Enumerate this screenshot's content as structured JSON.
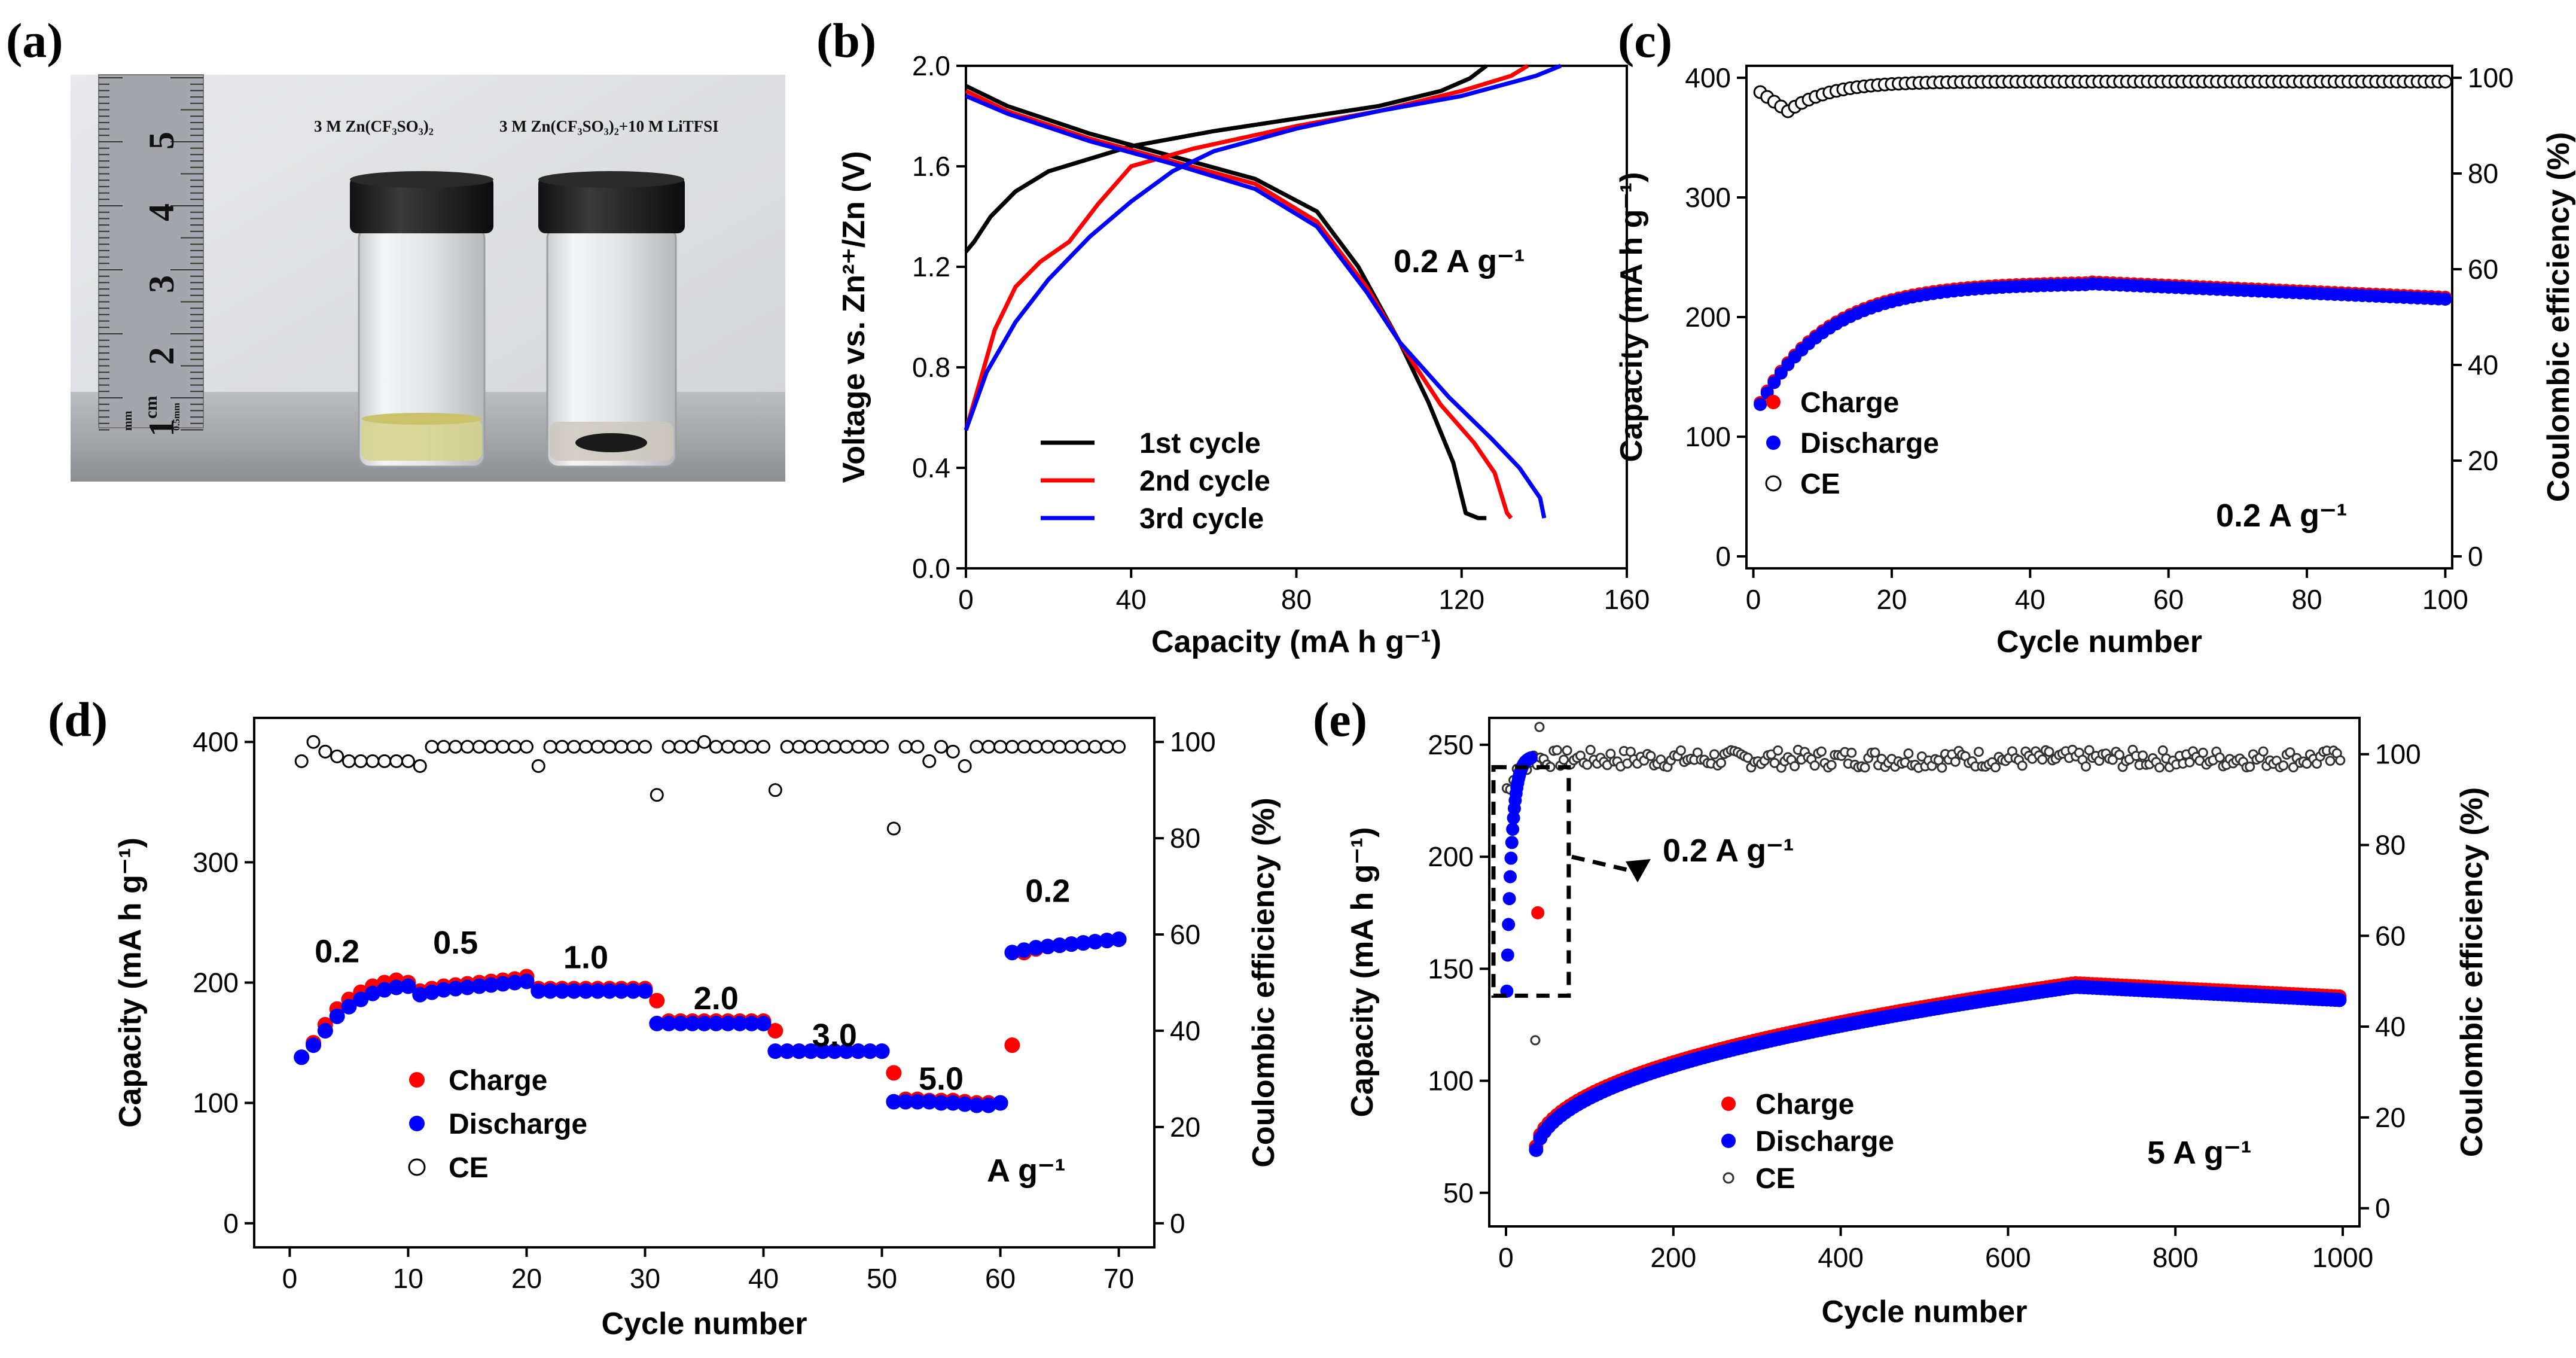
{
  "panel_labels": {
    "a": "(a)",
    "b": "(b)",
    "c": "(c)",
    "d": "(d)",
    "e": "(e)"
  },
  "photo": {
    "label_left": "3 M Zn(CF₃SO₃)₂",
    "label_right": "3 M Zn(CF₃SO₃)₂+10 M LiTFSI",
    "ruler_marks": [
      "5",
      "4",
      "3",
      "2",
      "1"
    ],
    "ruler_unit": "cm",
    "ruler_small": "mm",
    "ruler_small2": "0.5mm"
  },
  "chart_data": [
    {
      "id": "b",
      "type": "line",
      "xlabel": "Capacity (mA h g⁻¹)",
      "ylabel": "Voltage vs. Zn²⁺/Zn (V)",
      "xlim": [
        0,
        160
      ],
      "ylim": [
        0,
        2.0
      ],
      "xticks": [
        "0",
        "40",
        "80",
        "120",
        "160"
      ],
      "yticks": [
        "0.0",
        "0.4",
        "0.8",
        "1.2",
        "1.6",
        "2.0"
      ],
      "annotation": "0.2 A g⁻¹",
      "colors": {
        "c1": "#000000",
        "c2": "#ff0000",
        "c3": "#0000ff"
      },
      "series": [
        {
          "name": "1st cycle",
          "color": "#000000",
          "charge": [
            [
              0,
              1.26
            ],
            [
              2,
              1.3
            ],
            [
              6,
              1.4
            ],
            [
              12,
              1.5
            ],
            [
              20,
              1.58
            ],
            [
              40,
              1.68
            ],
            [
              60,
              1.74
            ],
            [
              80,
              1.79
            ],
            [
              100,
              1.84
            ],
            [
              115,
              1.9
            ],
            [
              122,
              1.95
            ],
            [
              126,
              2.0
            ]
          ],
          "discharge": [
            [
              0,
              1.92
            ],
            [
              10,
              1.84
            ],
            [
              30,
              1.73
            ],
            [
              50,
              1.64
            ],
            [
              70,
              1.55
            ],
            [
              85,
              1.42
            ],
            [
              95,
              1.2
            ],
            [
              105,
              0.9
            ],
            [
              112,
              0.66
            ],
            [
              118,
              0.42
            ],
            [
              121,
              0.22
            ],
            [
              124,
              0.2
            ],
            [
              126,
              0.2
            ]
          ]
        },
        {
          "name": "2nd cycle",
          "color": "#ff0000",
          "charge": [
            [
              0,
              0.55
            ],
            [
              3,
              0.72
            ],
            [
              7,
              0.95
            ],
            [
              12,
              1.12
            ],
            [
              18,
              1.22
            ],
            [
              25,
              1.3
            ],
            [
              32,
              1.45
            ],
            [
              40,
              1.6
            ],
            [
              55,
              1.67
            ],
            [
              80,
              1.76
            ],
            [
              100,
              1.82
            ],
            [
              120,
              1.9
            ],
            [
              132,
              1.96
            ],
            [
              136,
              2.0
            ]
          ],
          "discharge": [
            [
              0,
              1.9
            ],
            [
              10,
              1.82
            ],
            [
              30,
              1.71
            ],
            [
              50,
              1.62
            ],
            [
              70,
              1.53
            ],
            [
              85,
              1.38
            ],
            [
              97,
              1.12
            ],
            [
              105,
              0.9
            ],
            [
              115,
              0.65
            ],
            [
              123,
              0.5
            ],
            [
              128,
              0.38
            ],
            [
              131,
              0.22
            ],
            [
              132,
              0.2
            ]
          ]
        },
        {
          "name": "3rd cycle",
          "color": "#0000ff",
          "charge": [
            [
              0,
              0.55
            ],
            [
              5,
              0.78
            ],
            [
              12,
              0.98
            ],
            [
              20,
              1.15
            ],
            [
              30,
              1.32
            ],
            [
              40,
              1.46
            ],
            [
              50,
              1.58
            ],
            [
              60,
              1.66
            ],
            [
              80,
              1.75
            ],
            [
              100,
              1.82
            ],
            [
              120,
              1.88
            ],
            [
              138,
              1.96
            ],
            [
              144,
              2.0
            ]
          ],
          "discharge": [
            [
              0,
              1.88
            ],
            [
              10,
              1.81
            ],
            [
              30,
              1.7
            ],
            [
              50,
              1.61
            ],
            [
              70,
              1.51
            ],
            [
              85,
              1.36
            ],
            [
              97,
              1.1
            ],
            [
              105,
              0.9
            ],
            [
              117,
              0.68
            ],
            [
              127,
              0.52
            ],
            [
              134,
              0.4
            ],
            [
              139,
              0.28
            ],
            [
              140,
              0.2
            ]
          ]
        }
      ]
    },
    {
      "id": "c",
      "type": "scatter",
      "xlabel": "Cycle number",
      "ylabel": "Capacity (mA h g⁻¹)",
      "y2label": "Coulombic efficiency (%)",
      "xlim": [
        -1,
        101
      ],
      "ylim": [
        -10,
        410
      ],
      "y2lim": [
        -2.5,
        102.5
      ],
      "xticks": [
        "0",
        "20",
        "40",
        "60",
        "80",
        "100"
      ],
      "yticks": [
        "0",
        "100",
        "200",
        "300",
        "400"
      ],
      "y2ticks": [
        "0",
        "20",
        "40",
        "60",
        "80",
        "100"
      ],
      "annotation": "0.2 A g⁻¹",
      "legend": [
        "Charge",
        "Discharge",
        "CE"
      ],
      "capacity_model": {
        "start": 127,
        "peak": 228,
        "peak_cycle": 48,
        "end": 215,
        "cycles": 100
      },
      "ce_model": {
        "first": 97,
        "dip": 93,
        "dip_cycle": 5,
        "plateau": 99.2
      }
    },
    {
      "id": "d",
      "type": "scatter",
      "xlabel": "Cycle number",
      "ylabel": "Capacity (mA h g⁻¹)",
      "y2label": "Coulombic efficiency (%)",
      "xlim": [
        -3,
        73
      ],
      "ylim": [
        -20,
        420
      ],
      "y2lim": [
        -5,
        105
      ],
      "xticks": [
        "0",
        "10",
        "20",
        "30",
        "40",
        "50",
        "60",
        "70"
      ],
      "yticks": [
        "0",
        "100",
        "200",
        "300",
        "400"
      ],
      "y2ticks": [
        "0",
        "20",
        "40",
        "60",
        "80",
        "100"
      ],
      "rate_labels": [
        "0.2",
        "0.5",
        "1.0",
        "2.0",
        "3.0",
        "5.0",
        "0.2"
      ],
      "rate_label_positions": [
        [
          4,
          217
        ],
        [
          14,
          224
        ],
        [
          25,
          212
        ],
        [
          36,
          178
        ],
        [
          46,
          147
        ],
        [
          55,
          111
        ],
        [
          64,
          267
        ]
      ],
      "unit": "A g⁻¹",
      "legend": [
        "Charge",
        "Discharge",
        "CE"
      ],
      "charge": [
        138,
        150,
        165,
        178,
        186,
        192,
        197,
        200,
        202,
        200,
        193,
        195,
        197,
        198,
        199,
        200,
        201,
        202,
        203,
        205,
        195,
        195,
        195,
        195,
        195,
        195,
        195,
        195,
        195,
        195,
        185,
        168,
        168,
        168,
        168,
        168,
        168,
        168,
        168,
        168,
        160,
        143,
        143,
        143,
        143,
        143,
        143,
        143,
        143,
        143,
        125,
        103,
        103,
        102,
        102,
        102,
        101,
        100,
        100,
        100,
        148,
        225,
        228,
        230,
        231,
        232,
        233,
        234,
        235,
        236
      ],
      "discharge": [
        138,
        148,
        160,
        172,
        180,
        186,
        191,
        194,
        196,
        197,
        190,
        192,
        194,
        195,
        196,
        197,
        198,
        199,
        200,
        201,
        193,
        193,
        193,
        193,
        193,
        193,
        193,
        193,
        193,
        193,
        166,
        166,
        166,
        166,
        166,
        166,
        166,
        166,
        166,
        166,
        143,
        143,
        143,
        143,
        143,
        143,
        143,
        143,
        143,
        143,
        101,
        101,
        101,
        101,
        100,
        100,
        99,
        98,
        98,
        100,
        225,
        227,
        229,
        230,
        231,
        232,
        233,
        234,
        235,
        236
      ],
      "ce": [
        96,
        100,
        98,
        97,
        96,
        96,
        96,
        96,
        96,
        96,
        95,
        99,
        99,
        99,
        99,
        99,
        99,
        99,
        99,
        99,
        95,
        99,
        99,
        99,
        99,
        99,
        99,
        99,
        99,
        99,
        89,
        99,
        99,
        99,
        100,
        99,
        99,
        99,
        99,
        99,
        90,
        99,
        99,
        99,
        99,
        99,
        99,
        99,
        99,
        99,
        82,
        99,
        99,
        96,
        99,
        98,
        95,
        99,
        99,
        99,
        99,
        99,
        99,
        99,
        99,
        99,
        99,
        99,
        99,
        99
      ]
    },
    {
      "id": "e",
      "type": "scatter",
      "xlabel": "Cycle number",
      "ylabel": "Capacity (mA h g⁻¹)",
      "y2label": "Coulombic efficiency (%)",
      "xlim": [
        -20,
        1020
      ],
      "ylim": [
        35,
        262
      ],
      "y2lim": [
        -4,
        108
      ],
      "xticks": [
        "0",
        "200",
        "400",
        "600",
        "800",
        "1000"
      ],
      "yticks": [
        "50",
        "100",
        "150",
        "200",
        "250"
      ],
      "y2ticks": [
        "0",
        "20",
        "40",
        "60",
        "80",
        "100"
      ],
      "annotation": "0.2 A g⁻¹",
      "annotation2": "5 A g⁻¹",
      "legend": [
        "Charge",
        "Discharge",
        "CE"
      ],
      "inset_box": {
        "x0": -15,
        "x1": 75,
        "y0": 138,
        "y1": 240
      },
      "capacity_model": {
        "start": 65,
        "mid": 128,
        "peak": 142,
        "peak_cycle": 680,
        "end": 136
      }
    }
  ]
}
